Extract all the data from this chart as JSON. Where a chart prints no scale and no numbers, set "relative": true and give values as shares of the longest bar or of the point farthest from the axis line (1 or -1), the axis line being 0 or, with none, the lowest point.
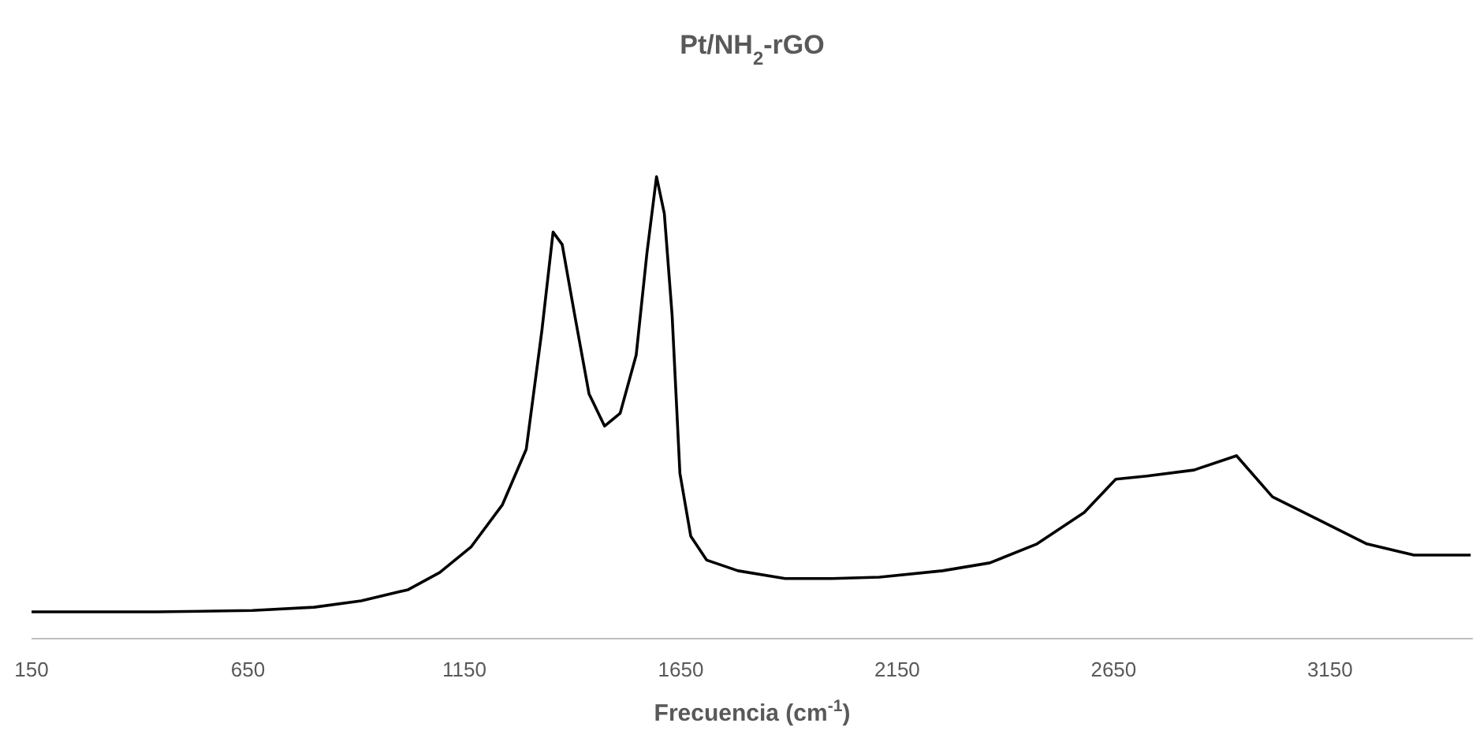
{
  "chart_data": {
    "type": "line",
    "title": "Pt/NH$_{2}$-rGO",
    "xlabel": "Frecuencia (cm$^{-1}$)",
    "relative": true,
    "xlim": [
      150,
      3480
    ],
    "xticks": [
      150,
      650,
      1150,
      1650,
      2150,
      2650,
      3150
    ],
    "grid": false,
    "marker": "none",
    "line_style": "solid",
    "series": [
      {
        "color": "#000000",
        "x": [
          150,
          440,
          660,
          803,
          912,
          1020,
          1093,
          1165,
          1238,
          1293,
          1329,
          1355,
          1376,
          1405,
          1438,
          1474,
          1510,
          1547,
          1572,
          1594,
          1612,
          1630,
          1648,
          1673,
          1710,
          1782,
          1891,
          2000,
          2109,
          2255,
          2364,
          2473,
          2582,
          2655,
          2727,
          2836,
          2934,
          3017,
          3126,
          3235,
          3344,
          3475
        ],
        "values": [
          0.058,
          0.058,
          0.061,
          0.068,
          0.082,
          0.106,
          0.143,
          0.198,
          0.29,
          0.41,
          0.666,
          0.88,
          0.853,
          0.7,
          0.53,
          0.46,
          0.488,
          0.614,
          0.836,
          1.0,
          0.92,
          0.7,
          0.358,
          0.222,
          0.17,
          0.147,
          0.13,
          0.13,
          0.133,
          0.147,
          0.164,
          0.205,
          0.273,
          0.345,
          0.352,
          0.365,
          0.396,
          0.307,
          0.256,
          0.205,
          0.181,
          0.181
        ]
      }
    ]
  }
}
